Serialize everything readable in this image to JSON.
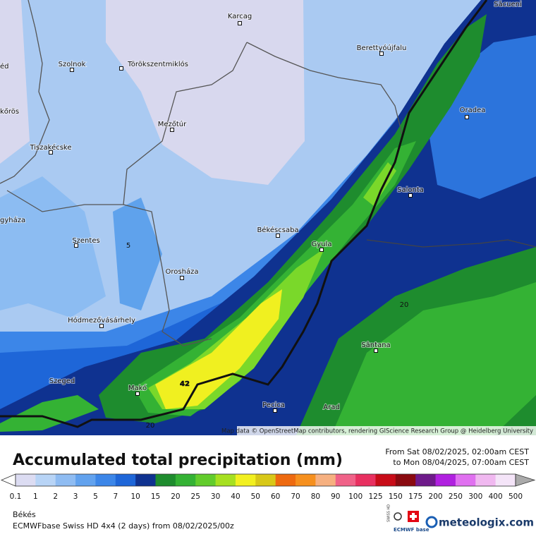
{
  "map": {
    "cities": [
      "Karcag",
      "Săcueni",
      "Berettyóújfalu",
      "Szolnok",
      "Törökszentmiklós",
      "éd",
      "kőrös",
      "Oradea",
      "Mezőtúr",
      "Tiszakécske",
      "Salonta",
      "gyháza",
      "Békéscsaba",
      "Szentes",
      "Gyula",
      "Orosháza",
      "Hódmezővásárhely",
      "Sântana",
      "Szeged",
      "Makó",
      "Pecica",
      "Arad"
    ],
    "contour_labels": [
      5,
      20,
      20,
      42
    ],
    "attribution": "Map data © OpenStreetMap contributors, rendering GIScience Research Group @ Heidelberg University"
  },
  "title": "Accumulated total precipitation (mm)",
  "period": {
    "from": "From Sat 08/02/2025, 02:00am CEST",
    "to": "to Mon 08/04/2025, 07:00am CEST"
  },
  "legend": {
    "levels": [
      0.1,
      1,
      2,
      3,
      5,
      7,
      10,
      15,
      20,
      25,
      30,
      40,
      50,
      60,
      70,
      80,
      90,
      100,
      125,
      150,
      175,
      200,
      250,
      300,
      400,
      500
    ],
    "colors": [
      "#dcdcf2",
      "#b8d4f6",
      "#8fbcf2",
      "#62a2ee",
      "#3c86e8",
      "#1e66d8",
      "#0f3290",
      "#1e8c2e",
      "#34b234",
      "#62cc2c",
      "#a6e020",
      "#f2f020",
      "#d8c818",
      "#ee6a10",
      "#f6901e",
      "#f6b080",
      "#f06288",
      "#e83060",
      "#c80c18",
      "#8a0a10",
      "#6e1a8a",
      "#b020e0",
      "#e070f0",
      "#f0b8f0",
      "#f4e4f8"
    ]
  },
  "footer": {
    "region": "Békés",
    "model": "ECMWFbase Swiss HD 4x4 (2 days) from 08/02/2025/00z",
    "badge_top": "SWISS HD",
    "badge_bottom": "ECMWF base",
    "brand": "meteologix.com"
  }
}
